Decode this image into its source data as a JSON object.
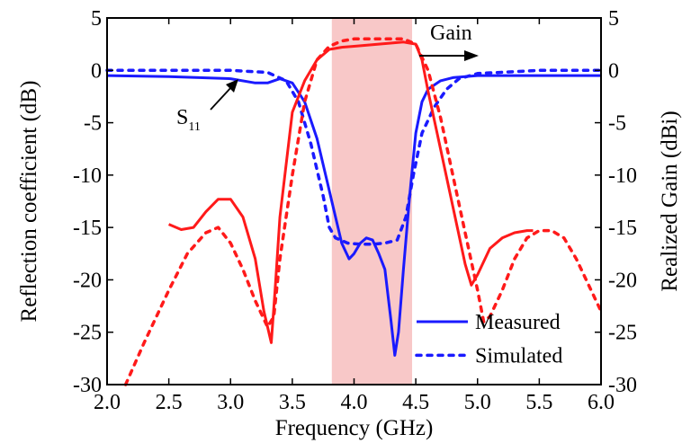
{
  "chart_data": {
    "type": "line",
    "title": "",
    "xlabel": "Frequency (GHz)",
    "ylabel_left": "Reflection coefficient (dB)",
    "ylabel_right": "Realized Gain (dBi)",
    "xlim": [
      2.0,
      6.0
    ],
    "ylim_left": [
      -30,
      5
    ],
    "ylim_right": [
      -30,
      5
    ],
    "x_ticks": [
      "2.0",
      "2.5",
      "3.0",
      "3.5",
      "4.0",
      "4.5",
      "5.0",
      "5.5",
      "6.0"
    ],
    "y_ticks_left": [
      "5",
      "0",
      "-5",
      "-10",
      "-15",
      "-20",
      "-25",
      "-30"
    ],
    "y_ticks_right": [
      "5",
      "0",
      "-5",
      "-10",
      "-15",
      "-20",
      "-25",
      "-30"
    ],
    "grid": false,
    "highlight_band": {
      "x_start": 3.82,
      "x_end": 4.47,
      "color": "#f8c8c8"
    },
    "legend": {
      "position": "bottom-right",
      "entries": [
        "Measured",
        "Simulated"
      ]
    },
    "annotations": [
      {
        "text": "Gain",
        "points_to": "right"
      },
      {
        "text": "S11",
        "base": "S",
        "subscript": "11",
        "points_to": "left"
      }
    ],
    "colors": {
      "s11": "#1a1aff",
      "gain": "#ff1a1a"
    },
    "series": [
      {
        "name": "Measured",
        "quantity": "S11",
        "axis": "left",
        "style": "solid",
        "color": "#1a1aff",
        "x": [
          2.0,
          2.5,
          3.0,
          3.2,
          3.3,
          3.4,
          3.5,
          3.6,
          3.7,
          3.78,
          3.85,
          3.9,
          3.96,
          4.0,
          4.05,
          4.1,
          4.15,
          4.2,
          4.25,
          4.3,
          4.33,
          4.36,
          4.4,
          4.45,
          4.5,
          4.55,
          4.6,
          4.7,
          4.8,
          5.0,
          5.5,
          6.0
        ],
        "y": [
          -0.5,
          -0.6,
          -0.8,
          -1.2,
          -1.2,
          -0.8,
          -1.2,
          -3.0,
          -6.5,
          -10.5,
          -14.0,
          -16.5,
          -18.0,
          -17.5,
          -16.5,
          -16.0,
          -16.2,
          -17.5,
          -19.0,
          -24.0,
          -27.2,
          -25.0,
          -19.0,
          -12.0,
          -6.0,
          -3.0,
          -1.8,
          -1.0,
          -0.7,
          -0.5,
          -0.5,
          -0.5
        ]
      },
      {
        "name": "Simulated",
        "quantity": "S11",
        "axis": "left",
        "style": "dotted",
        "color": "#1a1aff",
        "x": [
          2.0,
          2.5,
          3.0,
          3.3,
          3.45,
          3.55,
          3.65,
          3.75,
          3.8,
          3.85,
          3.95,
          4.05,
          4.15,
          4.25,
          4.35,
          4.42,
          4.48,
          4.55,
          4.65,
          4.75,
          4.85,
          5.0,
          5.5,
          6.0
        ],
        "y": [
          0.0,
          0.0,
          0.0,
          -0.2,
          -1.0,
          -3.0,
          -7.0,
          -12.0,
          -15.0,
          -16.0,
          -16.5,
          -16.6,
          -16.6,
          -16.5,
          -16.2,
          -14.0,
          -10.0,
          -6.0,
          -3.5,
          -1.8,
          -0.8,
          -0.3,
          0.0,
          0.0
        ]
      },
      {
        "name": "Measured",
        "quantity": "Gain",
        "axis": "right",
        "style": "solid",
        "color": "#ff1a1a",
        "x": [
          2.5,
          2.6,
          2.7,
          2.8,
          2.9,
          3.0,
          3.1,
          3.2,
          3.27,
          3.33,
          3.36,
          3.4,
          3.5,
          3.6,
          3.7,
          3.8,
          3.9,
          4.0,
          4.2,
          4.4,
          4.5,
          4.55,
          4.6,
          4.7,
          4.8,
          4.9,
          4.95,
          5.0,
          5.1,
          5.2,
          5.3,
          5.4,
          5.45
        ],
        "y": [
          -14.7,
          -15.2,
          -15.0,
          -13.5,
          -12.3,
          -12.3,
          -14.0,
          -18.0,
          -23.0,
          -26.0,
          -21.0,
          -14.0,
          -4.0,
          -1.0,
          1.0,
          2.0,
          2.2,
          2.3,
          2.5,
          2.7,
          2.5,
          1.0,
          -2.0,
          -7.5,
          -13.0,
          -18.5,
          -20.5,
          -19.5,
          -17.0,
          -16.0,
          -15.5,
          -15.3,
          -15.3
        ]
      },
      {
        "name": "Simulated",
        "quantity": "Gain",
        "axis": "right",
        "style": "dotted",
        "color": "#ff1a1a",
        "x": [
          2.15,
          2.3,
          2.5,
          2.65,
          2.8,
          2.9,
          3.0,
          3.1,
          3.2,
          3.3,
          3.35,
          3.4,
          3.5,
          3.6,
          3.7,
          3.8,
          3.9,
          4.0,
          4.2,
          4.4,
          4.5,
          4.6,
          4.7,
          4.8,
          4.9,
          5.0,
          5.05,
          5.1,
          5.2,
          5.3,
          5.4,
          5.5,
          5.6,
          5.7,
          5.8,
          5.9,
          6.0
        ],
        "y": [
          -30.0,
          -26.0,
          -21.0,
          -17.5,
          -15.5,
          -15.0,
          -16.5,
          -19.0,
          -22.0,
          -24.5,
          -23.5,
          -18.0,
          -10.0,
          -3.0,
          1.0,
          2.3,
          2.8,
          3.0,
          3.0,
          3.0,
          2.5,
          0.0,
          -4.5,
          -10.0,
          -15.5,
          -21.0,
          -24.0,
          -23.5,
          -21.0,
          -18.0,
          -16.0,
          -15.3,
          -15.3,
          -16.0,
          -18.0,
          -20.5,
          -23.0
        ]
      }
    ]
  }
}
